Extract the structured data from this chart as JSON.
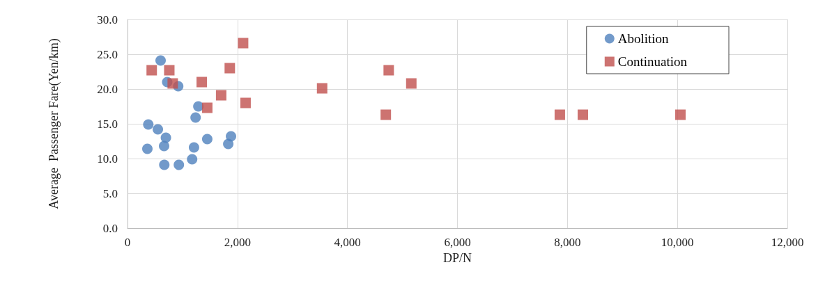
{
  "chart_data": {
    "type": "scatter",
    "xlabel": "DP/N",
    "ylabel": "Average  Passenger Fare(Yen/km)",
    "series": [
      {
        "name": "Abolition",
        "color": "#4f81bd",
        "marker": "circle",
        "x": [
          602,
          722,
          922,
          1288,
          1238,
          378,
          552,
          698,
          1882,
          1450,
          1832,
          665,
          1209,
          361,
          1175,
          669,
          934
        ],
        "values": [
          24.1,
          21.0,
          20.4,
          17.5,
          15.9,
          14.9,
          14.2,
          13.0,
          13.2,
          12.8,
          12.1,
          11.8,
          11.6,
          11.4,
          9.9,
          9.1,
          9.1
        ]
      },
      {
        "name": "Continuation",
        "color": "#c0504d",
        "marker": "square",
        "x": [
          2102,
          440,
          760,
          1860,
          822,
          1350,
          1703,
          2147,
          1450,
          3539,
          4750,
          5161,
          4697,
          7862,
          8281,
          10055
        ],
        "values": [
          26.6,
          22.7,
          22.7,
          23.0,
          20.8,
          21.0,
          19.1,
          18.0,
          17.3,
          20.1,
          22.7,
          20.8,
          16.3,
          16.3,
          16.3,
          16.3
        ]
      }
    ],
    "xlim": [
      0,
      12000
    ],
    "xticks": [
      0,
      {
        "value": 2000,
        "label": "2,000"
      },
      {
        "value": 4000,
        "label": "4,000"
      },
      {
        "value": 6000,
        "label": "6,000"
      },
      {
        "value": 8000,
        "label": "8,000"
      },
      {
        "value": 10000,
        "label": "10,000"
      },
      {
        "value": 12000,
        "label": "12,000"
      }
    ],
    "ylim": [
      0,
      30
    ],
    "yticks": [
      {
        "value": 0,
        "label": "0.0"
      },
      {
        "value": 5,
        "label": "5.0"
      },
      {
        "value": 10,
        "label": "10.0"
      },
      {
        "value": 15,
        "label": "15.0"
      },
      {
        "value": 20,
        "label": "20.0"
      },
      {
        "value": 25,
        "label": "25.0"
      },
      {
        "value": 30,
        "label": "30.0"
      }
    ],
    "grid": true,
    "legend": "top right"
  }
}
